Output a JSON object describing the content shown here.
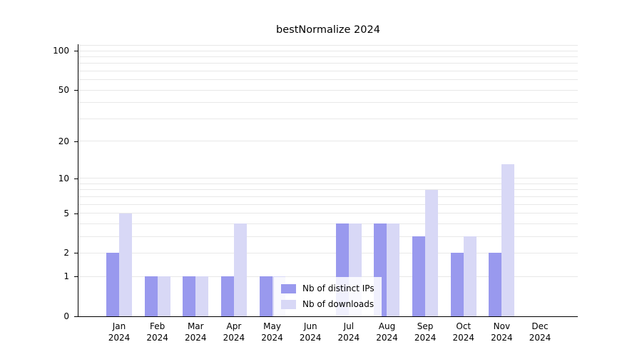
{
  "chart_data": {
    "type": "bar",
    "title": "bestNormalize 2024",
    "scale": "log1p",
    "grid": true,
    "legend_position": "inside-bottom-center",
    "categories": [
      "Jan",
      "Feb",
      "Mar",
      "Apr",
      "May",
      "Jun",
      "Jul",
      "Aug",
      "Sep",
      "Oct",
      "Nov",
      "Dec"
    ],
    "year": "2024",
    "series": [
      {
        "name": "Nb of distinct IPs",
        "color": "#9999ee",
        "values": [
          2,
          1,
          1,
          1,
          1,
          0,
          4,
          4,
          3,
          2,
          2,
          0
        ]
      },
      {
        "name": "Nb of downloads",
        "color": "#d8d8f6",
        "values": [
          5,
          1,
          1,
          4,
          1,
          0,
          4,
          4,
          8,
          3,
          13,
          0
        ]
      }
    ],
    "y_ticks": [
      0,
      1,
      2,
      5,
      10,
      20,
      50,
      100
    ],
    "y_gridlines_minor": [
      3,
      4,
      6,
      7,
      8,
      9,
      30,
      40,
      60,
      70,
      80,
      90,
      110
    ],
    "ylim": [
      0,
      112
    ]
  }
}
